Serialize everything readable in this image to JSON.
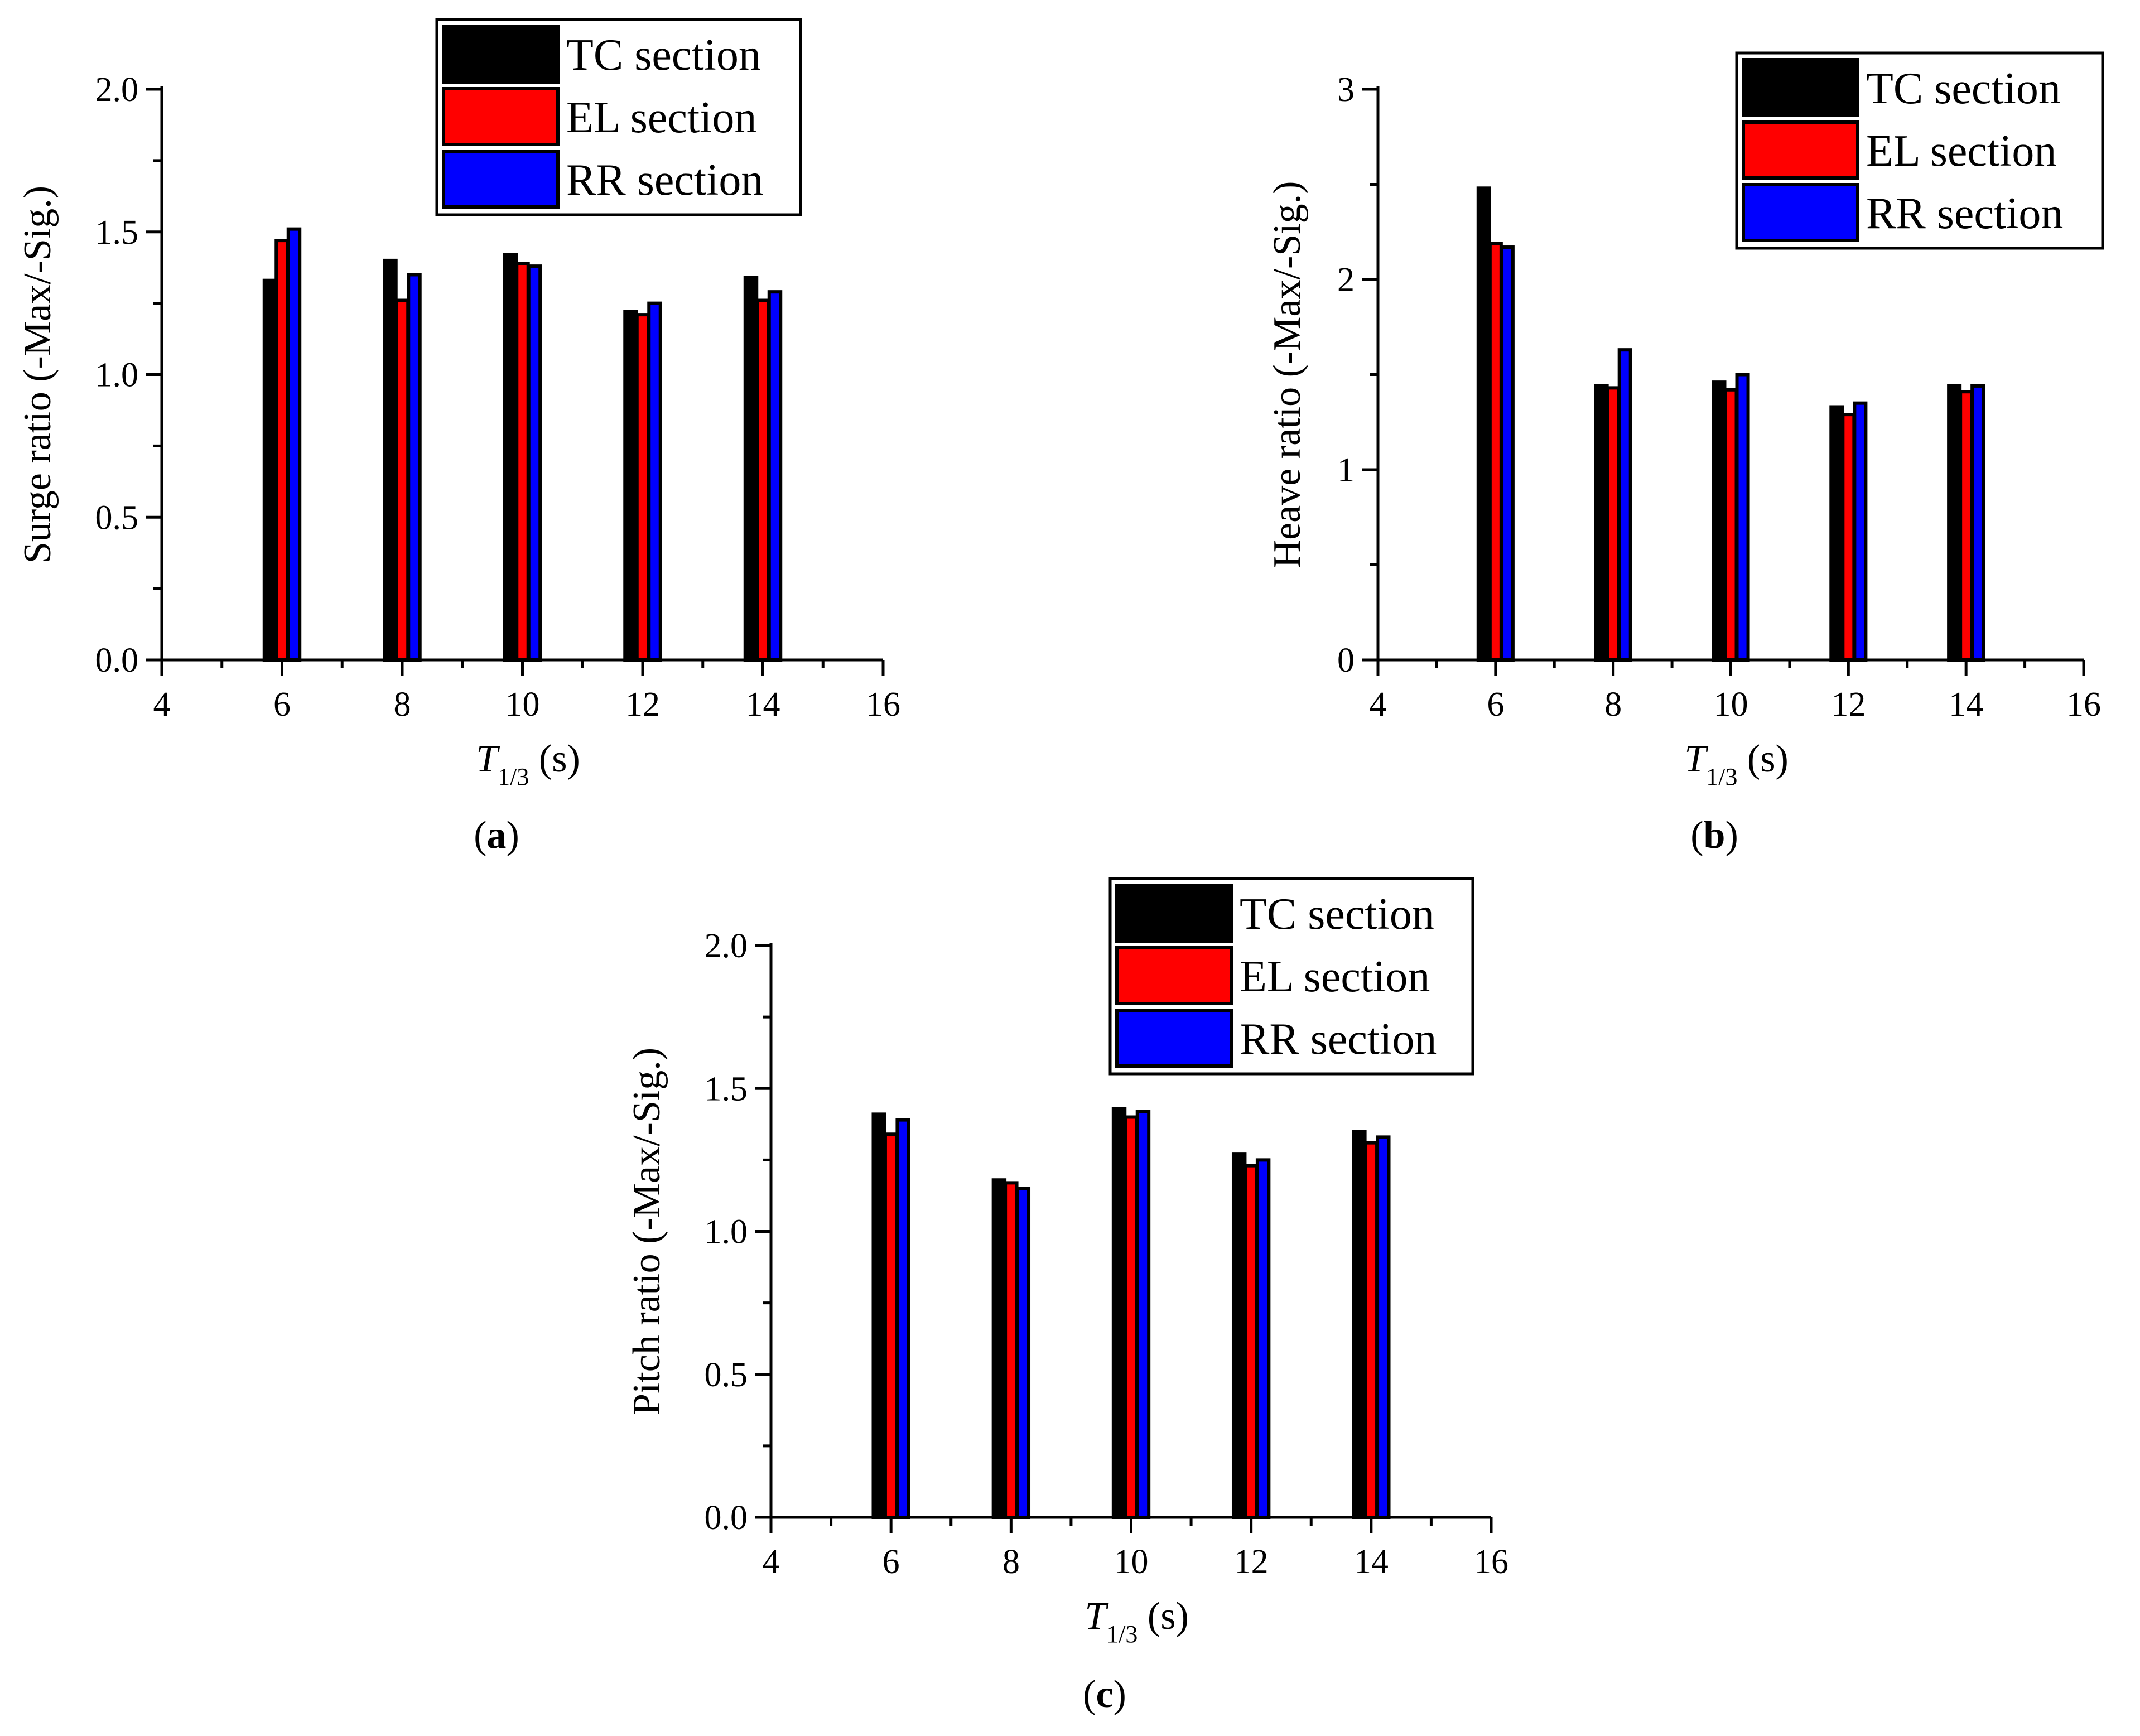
{
  "colors": {
    "tc": "#000000",
    "el": "#ff0000",
    "rr": "#0000ff"
  },
  "chart_data": [
    {
      "type": "bar",
      "panel_label": "a",
      "title": "",
      "x": [
        6,
        8,
        10,
        12,
        14
      ],
      "xticks": [
        "4",
        "6",
        "8",
        "10",
        "12",
        "14",
        "16"
      ],
      "xlim": [
        4,
        16
      ],
      "xlabel": {
        "symbol": "T",
        "subscript": "1/3",
        "unit": " (s)"
      },
      "ylabel": "Surge ratio (-Max/-Sig.)",
      "ylim": [
        0,
        2.0
      ],
      "yticks": [
        "0.0",
        "0.5",
        "1.0",
        "1.5",
        "2.0"
      ],
      "legend_position": "top-right",
      "series": [
        {
          "name": "TC section",
          "color": "#000000",
          "values": [
            1.33,
            1.4,
            1.42,
            1.22,
            1.34
          ]
        },
        {
          "name": "EL section",
          "color": "#ff0000",
          "values": [
            1.47,
            1.26,
            1.39,
            1.21,
            1.26
          ]
        },
        {
          "name": "RR section",
          "color": "#0000ff",
          "values": [
            1.51,
            1.35,
            1.38,
            1.25,
            1.29
          ]
        }
      ]
    },
    {
      "type": "bar",
      "panel_label": "b",
      "title": "",
      "x": [
        6,
        8,
        10,
        12,
        14
      ],
      "xticks": [
        "4",
        "6",
        "8",
        "10",
        "12",
        "14",
        "16"
      ],
      "xlim": [
        4,
        16
      ],
      "xlabel": {
        "symbol": "T",
        "subscript": "1/3",
        "unit": " (s)"
      },
      "ylabel": "Heave ratio (-Max/-Sig.)",
      "ylim": [
        0,
        3
      ],
      "yticks": [
        "0",
        "1",
        "2",
        "3"
      ],
      "legend_position": "top-right",
      "series": [
        {
          "name": "TC section",
          "color": "#000000",
          "values": [
            2.48,
            1.44,
            1.46,
            1.33,
            1.44
          ]
        },
        {
          "name": "EL section",
          "color": "#ff0000",
          "values": [
            2.19,
            1.43,
            1.42,
            1.29,
            1.41
          ]
        },
        {
          "name": "RR section",
          "color": "#0000ff",
          "values": [
            2.17,
            1.63,
            1.5,
            1.35,
            1.44
          ]
        }
      ]
    },
    {
      "type": "bar",
      "panel_label": "c",
      "title": "",
      "x": [
        6,
        8,
        10,
        12,
        14
      ],
      "xticks": [
        "4",
        "6",
        "8",
        "10",
        "12",
        "14",
        "16"
      ],
      "xlim": [
        4,
        16
      ],
      "xlabel": {
        "symbol": "T",
        "subscript": "1/3",
        "unit": " (s)"
      },
      "ylabel": "Pitch ratio (-Max/-Sig.)",
      "ylim": [
        0,
        2.0
      ],
      "yticks": [
        "0.0",
        "0.5",
        "1.0",
        "1.5",
        "2.0"
      ],
      "legend_position": "top-right",
      "series": [
        {
          "name": "TC section",
          "color": "#000000",
          "values": [
            1.41,
            1.18,
            1.43,
            1.27,
            1.35
          ]
        },
        {
          "name": "EL section",
          "color": "#ff0000",
          "values": [
            1.34,
            1.17,
            1.4,
            1.23,
            1.31
          ]
        },
        {
          "name": "RR section",
          "color": "#0000ff",
          "values": [
            1.39,
            1.15,
            1.42,
            1.25,
            1.33
          ]
        }
      ]
    }
  ]
}
